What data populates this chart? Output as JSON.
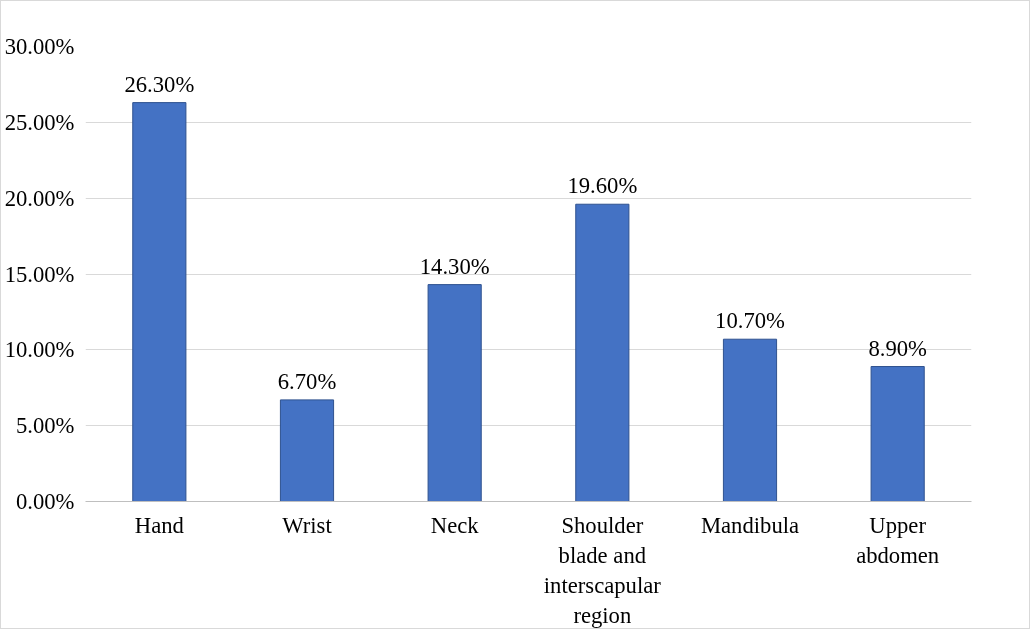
{
  "chart_data": {
    "type": "bar",
    "categories": [
      "Hand",
      "Wrist",
      "Neck",
      "Shoulder blade and interscapular region",
      "Mandibula",
      "Upper abdomen"
    ],
    "values": [
      26.3,
      6.7,
      14.3,
      19.6,
      10.7,
      8.9
    ],
    "color": "#4472c4",
    "value_labels": [
      "26.30%",
      "6.70%",
      "14.30%",
      "19.60%",
      "10.70%",
      "8.90%"
    ],
    "ylim": [
      0,
      30
    ],
    "yticks": [
      {
        "value": 0,
        "label": "0.00%"
      },
      {
        "value": 5,
        "label": "5.00%"
      },
      {
        "value": 10,
        "label": "10.00%"
      },
      {
        "value": 15,
        "label": "15.00%"
      },
      {
        "value": 20,
        "label": "20.00%"
      },
      {
        "value": 25,
        "label": "25.00%"
      },
      {
        "value": 30,
        "label": "30.00%"
      }
    ],
    "grid": "y"
  }
}
